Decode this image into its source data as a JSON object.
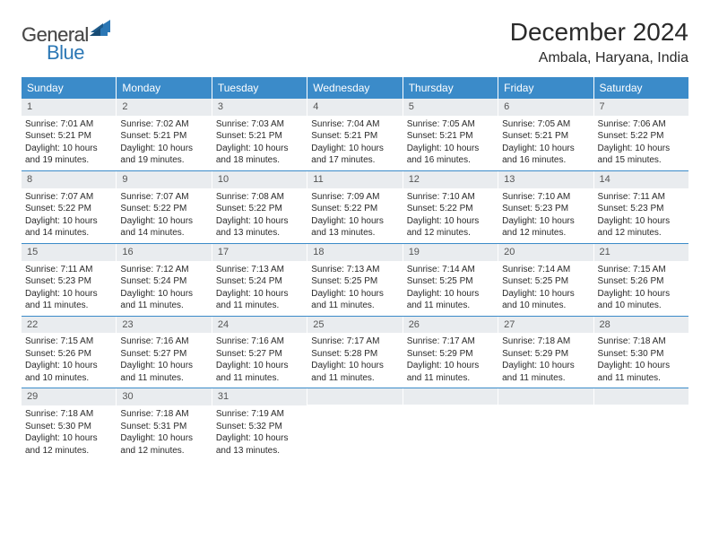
{
  "logo": {
    "general": "General",
    "blue": "Blue"
  },
  "title": "December 2024",
  "location": "Ambala, Haryana, India",
  "colors": {
    "header_bg": "#3b8bc9",
    "header_text": "#ffffff",
    "daynum_bg": "#e9ecef",
    "daynum_text": "#555555",
    "body_text": "#2a2a2a",
    "row_divider": "#3b8bc9",
    "background": "#ffffff",
    "logo_gray": "#4a4a4a",
    "logo_blue": "#2b77b5"
  },
  "typography": {
    "title_fontsize": 28,
    "location_fontsize": 16,
    "dayheader_fontsize": 12,
    "daynum_fontsize": 11,
    "body_fontsize": 10,
    "font_family": "Arial"
  },
  "day_labels": [
    "Sunday",
    "Monday",
    "Tuesday",
    "Wednesday",
    "Thursday",
    "Friday",
    "Saturday"
  ],
  "weeks": [
    [
      {
        "n": "1",
        "sr": "Sunrise: 7:01 AM",
        "ss": "Sunset: 5:21 PM",
        "dl": "Daylight: 10 hours and 19 minutes."
      },
      {
        "n": "2",
        "sr": "Sunrise: 7:02 AM",
        "ss": "Sunset: 5:21 PM",
        "dl": "Daylight: 10 hours and 19 minutes."
      },
      {
        "n": "3",
        "sr": "Sunrise: 7:03 AM",
        "ss": "Sunset: 5:21 PM",
        "dl": "Daylight: 10 hours and 18 minutes."
      },
      {
        "n": "4",
        "sr": "Sunrise: 7:04 AM",
        "ss": "Sunset: 5:21 PM",
        "dl": "Daylight: 10 hours and 17 minutes."
      },
      {
        "n": "5",
        "sr": "Sunrise: 7:05 AM",
        "ss": "Sunset: 5:21 PM",
        "dl": "Daylight: 10 hours and 16 minutes."
      },
      {
        "n": "6",
        "sr": "Sunrise: 7:05 AM",
        "ss": "Sunset: 5:21 PM",
        "dl": "Daylight: 10 hours and 16 minutes."
      },
      {
        "n": "7",
        "sr": "Sunrise: 7:06 AM",
        "ss": "Sunset: 5:22 PM",
        "dl": "Daylight: 10 hours and 15 minutes."
      }
    ],
    [
      {
        "n": "8",
        "sr": "Sunrise: 7:07 AM",
        "ss": "Sunset: 5:22 PM",
        "dl": "Daylight: 10 hours and 14 minutes."
      },
      {
        "n": "9",
        "sr": "Sunrise: 7:07 AM",
        "ss": "Sunset: 5:22 PM",
        "dl": "Daylight: 10 hours and 14 minutes."
      },
      {
        "n": "10",
        "sr": "Sunrise: 7:08 AM",
        "ss": "Sunset: 5:22 PM",
        "dl": "Daylight: 10 hours and 13 minutes."
      },
      {
        "n": "11",
        "sr": "Sunrise: 7:09 AM",
        "ss": "Sunset: 5:22 PM",
        "dl": "Daylight: 10 hours and 13 minutes."
      },
      {
        "n": "12",
        "sr": "Sunrise: 7:10 AM",
        "ss": "Sunset: 5:22 PM",
        "dl": "Daylight: 10 hours and 12 minutes."
      },
      {
        "n": "13",
        "sr": "Sunrise: 7:10 AM",
        "ss": "Sunset: 5:23 PM",
        "dl": "Daylight: 10 hours and 12 minutes."
      },
      {
        "n": "14",
        "sr": "Sunrise: 7:11 AM",
        "ss": "Sunset: 5:23 PM",
        "dl": "Daylight: 10 hours and 12 minutes."
      }
    ],
    [
      {
        "n": "15",
        "sr": "Sunrise: 7:11 AM",
        "ss": "Sunset: 5:23 PM",
        "dl": "Daylight: 10 hours and 11 minutes."
      },
      {
        "n": "16",
        "sr": "Sunrise: 7:12 AM",
        "ss": "Sunset: 5:24 PM",
        "dl": "Daylight: 10 hours and 11 minutes."
      },
      {
        "n": "17",
        "sr": "Sunrise: 7:13 AM",
        "ss": "Sunset: 5:24 PM",
        "dl": "Daylight: 10 hours and 11 minutes."
      },
      {
        "n": "18",
        "sr": "Sunrise: 7:13 AM",
        "ss": "Sunset: 5:25 PM",
        "dl": "Daylight: 10 hours and 11 minutes."
      },
      {
        "n": "19",
        "sr": "Sunrise: 7:14 AM",
        "ss": "Sunset: 5:25 PM",
        "dl": "Daylight: 10 hours and 11 minutes."
      },
      {
        "n": "20",
        "sr": "Sunrise: 7:14 AM",
        "ss": "Sunset: 5:25 PM",
        "dl": "Daylight: 10 hours and 10 minutes."
      },
      {
        "n": "21",
        "sr": "Sunrise: 7:15 AM",
        "ss": "Sunset: 5:26 PM",
        "dl": "Daylight: 10 hours and 10 minutes."
      }
    ],
    [
      {
        "n": "22",
        "sr": "Sunrise: 7:15 AM",
        "ss": "Sunset: 5:26 PM",
        "dl": "Daylight: 10 hours and 10 minutes."
      },
      {
        "n": "23",
        "sr": "Sunrise: 7:16 AM",
        "ss": "Sunset: 5:27 PM",
        "dl": "Daylight: 10 hours and 11 minutes."
      },
      {
        "n": "24",
        "sr": "Sunrise: 7:16 AM",
        "ss": "Sunset: 5:27 PM",
        "dl": "Daylight: 10 hours and 11 minutes."
      },
      {
        "n": "25",
        "sr": "Sunrise: 7:17 AM",
        "ss": "Sunset: 5:28 PM",
        "dl": "Daylight: 10 hours and 11 minutes."
      },
      {
        "n": "26",
        "sr": "Sunrise: 7:17 AM",
        "ss": "Sunset: 5:29 PM",
        "dl": "Daylight: 10 hours and 11 minutes."
      },
      {
        "n": "27",
        "sr": "Sunrise: 7:18 AM",
        "ss": "Sunset: 5:29 PM",
        "dl": "Daylight: 10 hours and 11 minutes."
      },
      {
        "n": "28",
        "sr": "Sunrise: 7:18 AM",
        "ss": "Sunset: 5:30 PM",
        "dl": "Daylight: 10 hours and 11 minutes."
      }
    ],
    [
      {
        "n": "29",
        "sr": "Sunrise: 7:18 AM",
        "ss": "Sunset: 5:30 PM",
        "dl": "Daylight: 10 hours and 12 minutes."
      },
      {
        "n": "30",
        "sr": "Sunrise: 7:18 AM",
        "ss": "Sunset: 5:31 PM",
        "dl": "Daylight: 10 hours and 12 minutes."
      },
      {
        "n": "31",
        "sr": "Sunrise: 7:19 AM",
        "ss": "Sunset: 5:32 PM",
        "dl": "Daylight: 10 hours and 13 minutes."
      },
      null,
      null,
      null,
      null
    ]
  ]
}
